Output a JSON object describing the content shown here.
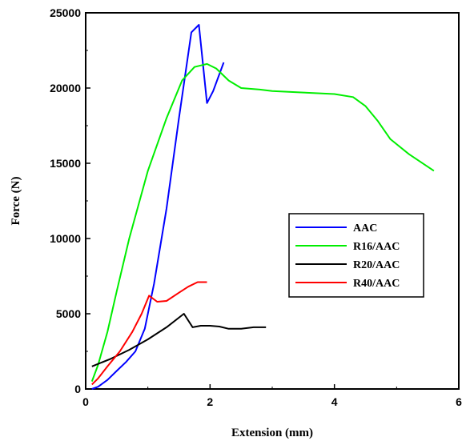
{
  "chart_data": {
    "type": "line",
    "title": "",
    "xlabel": "Extension (mm)",
    "ylabel": "Force (N)",
    "xlim": [
      0,
      6
    ],
    "ylim": [
      0,
      25000
    ],
    "xticks": [
      0,
      2,
      4,
      6
    ],
    "yticks": [
      0,
      5000,
      10000,
      15000,
      20000,
      25000
    ],
    "grid": false,
    "legend_position": "center-right",
    "series": [
      {
        "name": "AAC",
        "color": "#0000ff",
        "points": [
          [
            0.1,
            0
          ],
          [
            0.2,
            150
          ],
          [
            0.35,
            600
          ],
          [
            0.5,
            1200
          ],
          [
            0.65,
            1800
          ],
          [
            0.8,
            2500
          ],
          [
            0.95,
            4000
          ],
          [
            1.1,
            7000
          ],
          [
            1.3,
            12000
          ],
          [
            1.5,
            18000
          ],
          [
            1.7,
            23700
          ],
          [
            1.82,
            24200
          ],
          [
            1.95,
            19000
          ],
          [
            2.05,
            19800
          ],
          [
            2.22,
            21700
          ]
        ]
      },
      {
        "name": "R16/AAC",
        "color": "#00ee00",
        "points": [
          [
            0.1,
            500
          ],
          [
            0.2,
            1600
          ],
          [
            0.35,
            3800
          ],
          [
            0.5,
            6500
          ],
          [
            0.7,
            10000
          ],
          [
            1.0,
            14500
          ],
          [
            1.3,
            18000
          ],
          [
            1.55,
            20500
          ],
          [
            1.75,
            21400
          ],
          [
            1.95,
            21600
          ],
          [
            2.1,
            21300
          ],
          [
            2.3,
            20500
          ],
          [
            2.5,
            20000
          ],
          [
            2.8,
            19900
          ],
          [
            3.0,
            19800
          ],
          [
            3.5,
            19700
          ],
          [
            4.0,
            19600
          ],
          [
            4.3,
            19400
          ],
          [
            4.5,
            18800
          ],
          [
            4.7,
            17800
          ],
          [
            4.9,
            16600
          ],
          [
            5.2,
            15600
          ],
          [
            5.6,
            14500
          ]
        ]
      },
      {
        "name": "R20/AAC",
        "color": "#000000",
        "points": [
          [
            0.1,
            1500
          ],
          [
            0.4,
            2000
          ],
          [
            0.7,
            2600
          ],
          [
            1.0,
            3300
          ],
          [
            1.3,
            4100
          ],
          [
            1.58,
            5000
          ],
          [
            1.72,
            4100
          ],
          [
            1.85,
            4200
          ],
          [
            2.0,
            4200
          ],
          [
            2.15,
            4150
          ],
          [
            2.3,
            4000
          ],
          [
            2.5,
            4000
          ],
          [
            2.7,
            4100
          ],
          [
            2.9,
            4100
          ]
        ]
      },
      {
        "name": "R40/AAC",
        "color": "#ff0000",
        "points": [
          [
            0.1,
            300
          ],
          [
            0.2,
            700
          ],
          [
            0.35,
            1500
          ],
          [
            0.55,
            2500
          ],
          [
            0.75,
            3800
          ],
          [
            0.9,
            5000
          ],
          [
            1.02,
            6200
          ],
          [
            1.15,
            5800
          ],
          [
            1.3,
            5850
          ],
          [
            1.5,
            6400
          ],
          [
            1.65,
            6800
          ],
          [
            1.8,
            7100
          ],
          [
            1.95,
            7100
          ]
        ]
      }
    ]
  }
}
